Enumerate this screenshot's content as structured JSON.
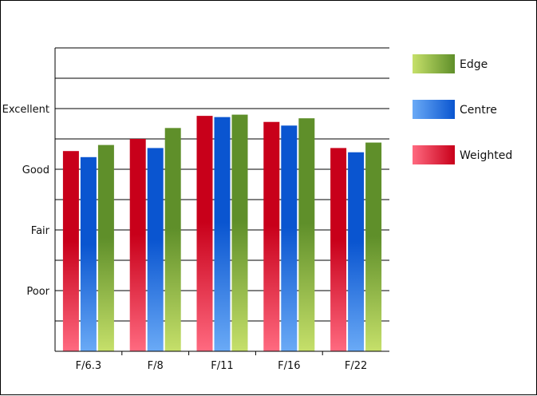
{
  "chart_data": {
    "type": "bar",
    "categories": [
      "F/6.3",
      "F/8",
      "F/11",
      "F/16",
      "F/22"
    ],
    "series": [
      {
        "name": "Weighted",
        "values": [
          3.3,
          3.5,
          3.88,
          3.78,
          3.35
        ],
        "color": "#e01a2a"
      },
      {
        "name": "Centre",
        "values": [
          3.2,
          3.35,
          3.86,
          3.72,
          3.28
        ],
        "color": "#2a6fe0"
      },
      {
        "name": "Edge",
        "values": [
          3.4,
          3.68,
          3.9,
          3.84,
          3.44
        ],
        "color": "#8fc13c"
      }
    ],
    "y_ticks": [
      {
        "value": 1,
        "label": "Poor"
      },
      {
        "value": 2,
        "label": "Fair"
      },
      {
        "value": 3,
        "label": "Good"
      },
      {
        "value": 4,
        "label": "Excellent"
      }
    ],
    "ylim": [
      0,
      5
    ],
    "grid": true,
    "legend_position": "right",
    "legend_order": [
      "Edge",
      "Centre",
      "Weighted"
    ],
    "title": "",
    "xlabel": "",
    "ylabel": ""
  }
}
